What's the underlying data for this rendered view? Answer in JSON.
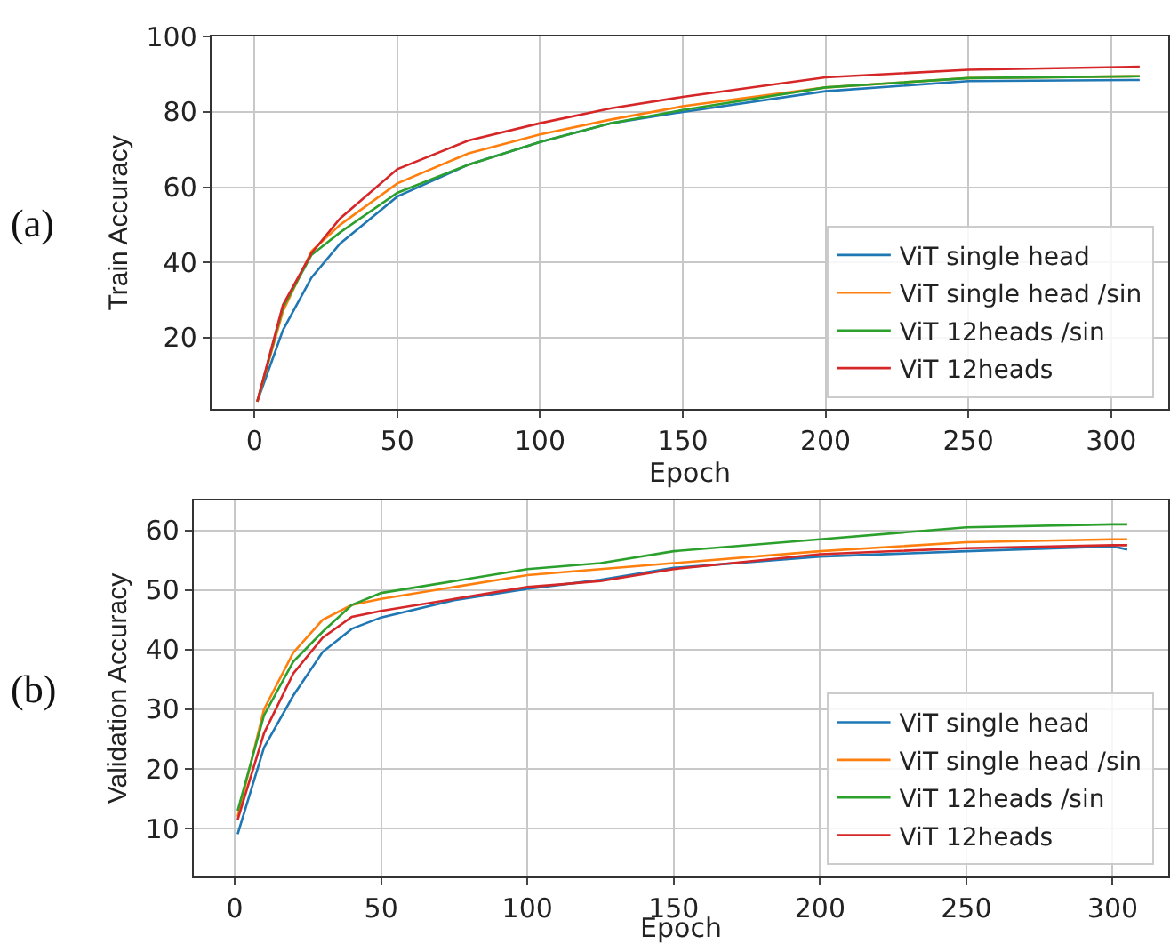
{
  "chart_data": [
    {
      "type": "line",
      "xlabel": "Epoch",
      "ylabel": "Train Accuracy",
      "annotations": [
        "(a)"
      ],
      "xlim": [
        -15,
        320
      ],
      "ylim": [
        1,
        100
      ],
      "xticks": [
        0,
        50,
        100,
        150,
        200,
        250,
        300
      ],
      "yticks": [
        20,
        40,
        60,
        80,
        100
      ],
      "grid": true,
      "legend": "bottom right",
      "marker": "none",
      "line_style": "solid",
      "x": [
        1,
        10,
        20,
        30,
        50,
        75,
        100,
        125,
        150,
        200,
        250,
        310
      ],
      "series": [
        {
          "name": "ViT single head",
          "color": "#1f77b4",
          "values": [
            3,
            22,
            36,
            45,
            57.5,
            66,
            72,
            77,
            80,
            85.5,
            88.2,
            88.5
          ]
        },
        {
          "name": "ViT single head /sin",
          "color": "#ff7f0e",
          "values": [
            3,
            27,
            43,
            50,
            61,
            69,
            74,
            78,
            81.5,
            86.5,
            89,
            89.5
          ]
        },
        {
          "name": "ViT 12heads /sin",
          "color": "#2ca02c",
          "values": [
            3,
            28,
            42,
            48,
            58.5,
            66,
            72,
            77,
            80.5,
            86.5,
            89,
            89.5
          ]
        },
        {
          "name": "ViT 12heads",
          "color": "#d62728",
          "values": [
            3,
            28.7,
            42.5,
            51.7,
            64.8,
            72.4,
            77,
            81,
            84,
            89.2,
            91.2,
            92
          ]
        }
      ]
    },
    {
      "type": "line",
      "xlabel": "Epoch",
      "ylabel": "Validation Accuracy",
      "annotations": [
        "(b)"
      ],
      "xlim": [
        -14,
        319
      ],
      "ylim": [
        2,
        65
      ],
      "xticks": [
        0,
        50,
        100,
        150,
        200,
        250,
        300
      ],
      "yticks": [
        10,
        20,
        30,
        40,
        50,
        60
      ],
      "grid": true,
      "legend": "bottom right",
      "marker": "none",
      "line_style": "solid",
      "x": [
        1,
        10,
        20,
        30,
        40,
        50,
        75,
        100,
        125,
        150,
        200,
        250,
        300,
        305
      ],
      "series": [
        {
          "name": "ViT single head",
          "color": "#1f77b4",
          "values": [
            9.1,
            23.6,
            32.3,
            39.6,
            43.5,
            45.4,
            48.3,
            50.2,
            51.7,
            53.7,
            55.6,
            56.5,
            57.3,
            56.8
          ]
        },
        {
          "name": "ViT single head /sin",
          "color": "#ff7f0e",
          "values": [
            12,
            30,
            39.5,
            45,
            47.5,
            48.5,
            50.5,
            52.5,
            53.5,
            54.5,
            56.5,
            58,
            58.5,
            58.5
          ]
        },
        {
          "name": "ViT 12heads /sin",
          "color": "#2ca02c",
          "values": [
            13,
            29,
            38,
            43,
            47.5,
            49.5,
            51.5,
            53.5,
            54.5,
            56.5,
            58.5,
            60.5,
            61,
            61
          ]
        },
        {
          "name": "ViT 12heads",
          "color": "#d62728",
          "values": [
            11.5,
            26,
            36,
            42,
            45.5,
            46.5,
            48.5,
            50.5,
            51.5,
            53.5,
            56,
            57,
            57.5,
            57.5
          ]
        }
      ]
    }
  ]
}
